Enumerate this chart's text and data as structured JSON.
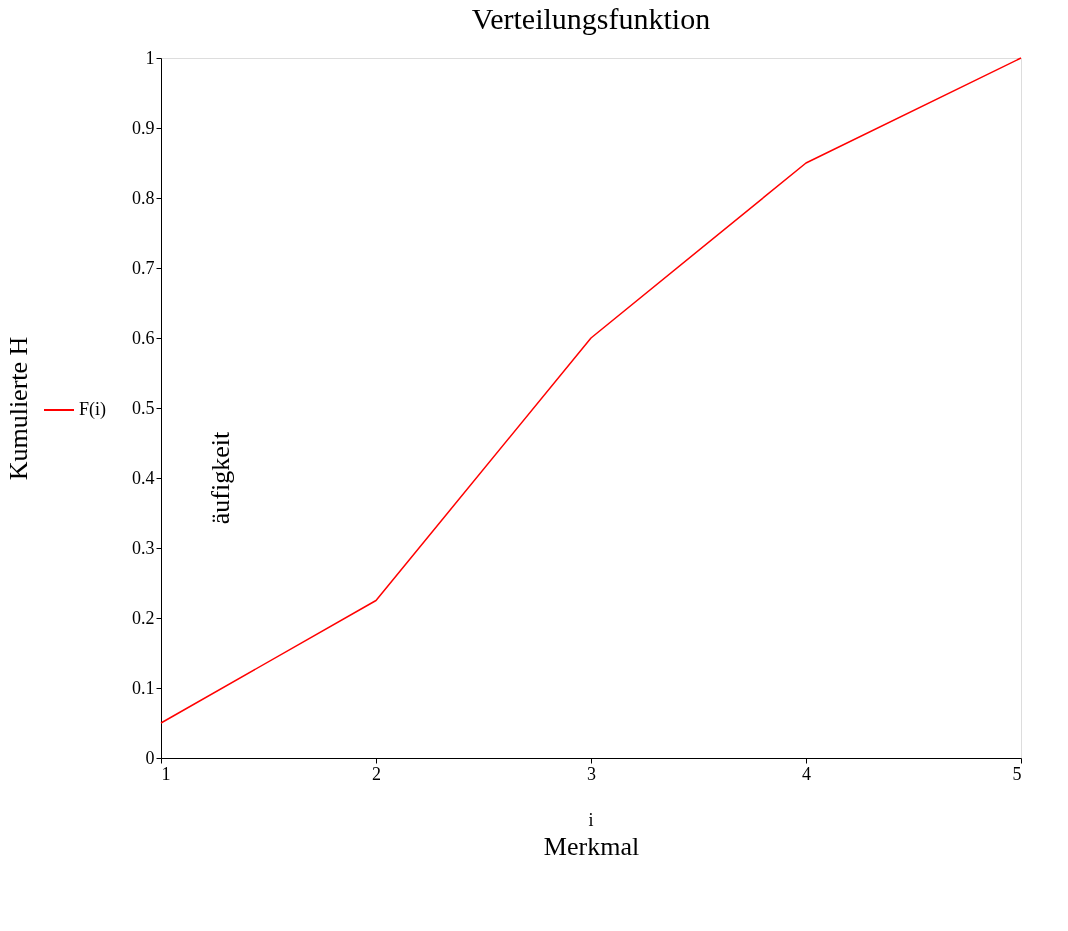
{
  "chart_data": {
    "type": "line",
    "title": "Verteilungsfunktion",
    "xlabel": "Merkmal",
    "ylabel": "Kumulierte H",
    "annotations": [
      "i",
      "äufigkeit"
    ],
    "x": [
      1,
      2,
      3,
      4,
      5
    ],
    "series": [
      {
        "name": "F(i)",
        "color": "#ff0000",
        "values": [
          0.05,
          0.225,
          0.6,
          0.85,
          1.0
        ]
      }
    ],
    "xlim": [
      1,
      5
    ],
    "xticks": [
      1,
      2,
      3,
      4,
      5
    ],
    "ylim": [
      0,
      1
    ],
    "yticks": [
      0,
      0.1,
      0.2,
      0.3,
      0.4,
      0.5,
      0.6,
      0.7,
      0.8,
      0.9,
      1
    ],
    "grid": false,
    "legend": "left",
    "line_style": "solid",
    "marker": "none"
  }
}
